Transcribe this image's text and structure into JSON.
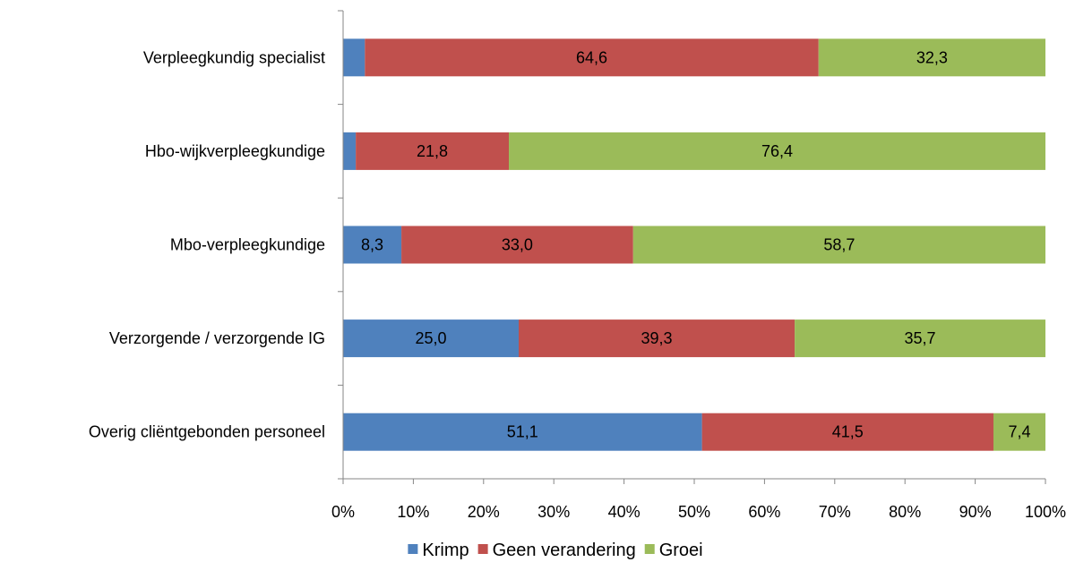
{
  "chart_data": {
    "type": "bar",
    "orientation": "horizontal",
    "stacked": true,
    "categories": [
      "Verpleegkundig specialist",
      "Hbo-wijkverpleegkundige",
      "Mbo-verpleegkundige",
      "Verzorgende / verzorgende IG",
      "Overig cliëntgebonden personeel"
    ],
    "series": [
      {
        "name": "Krimp",
        "color": "#4F81BD",
        "values": [
          3.1,
          1.8,
          8.3,
          25.0,
          51.1
        ],
        "labels": [
          "",
          "",
          "8,3",
          "25,0",
          "51,1"
        ]
      },
      {
        "name": "Geen verandering",
        "color": "#C0504D",
        "values": [
          64.6,
          21.8,
          33.0,
          39.3,
          41.5
        ],
        "labels": [
          "64,6",
          "21,8",
          "33,0",
          "39,3",
          "41,5"
        ]
      },
      {
        "name": "Groei",
        "color": "#9BBB59",
        "values": [
          32.3,
          76.4,
          58.7,
          35.7,
          7.4
        ],
        "labels": [
          "32,3",
          "76,4",
          "58,7",
          "35,7",
          "7,4"
        ]
      }
    ],
    "xlim": [
      0,
      100
    ],
    "xticks": [
      "0%",
      "10%",
      "20%",
      "30%",
      "40%",
      "50%",
      "60%",
      "70%",
      "80%",
      "90%",
      "100%"
    ],
    "grid": false,
    "legend": "bottom"
  }
}
